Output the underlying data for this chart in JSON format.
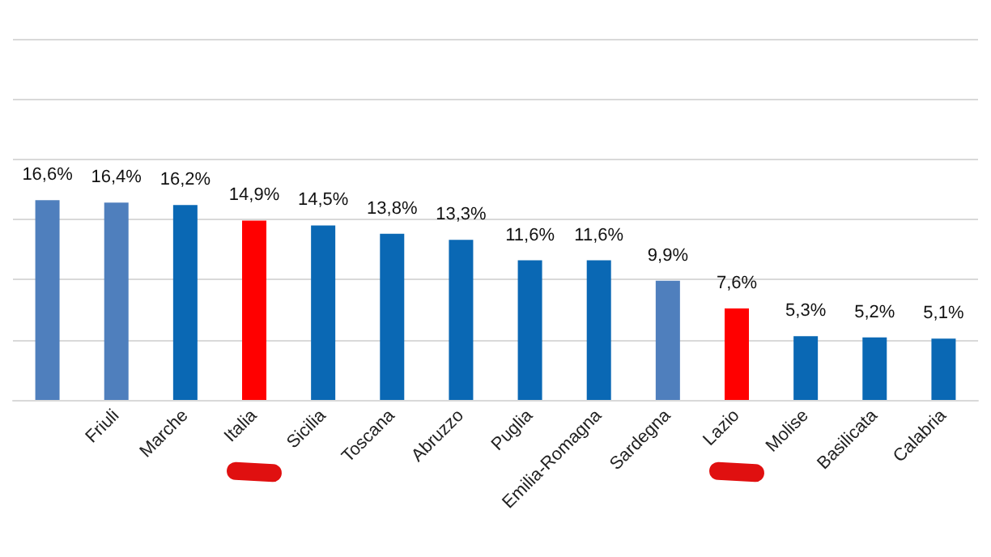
{
  "chart_data": {
    "type": "bar",
    "categories": [
      null,
      "Friuli",
      "Marche",
      "Italia",
      "Sicilia",
      "Toscana",
      "Abruzzo",
      "Puglia",
      "Emilia-Romagna",
      "Sardegna",
      "Lazio",
      "Molise",
      "Basilicata",
      "Calabria"
    ],
    "values": [
      16.6,
      16.4,
      16.2,
      14.9,
      14.5,
      13.8,
      13.3,
      11.6,
      11.6,
      9.9,
      7.6,
      5.3,
      5.2,
      5.1
    ],
    "colors": [
      "#4f7fbd",
      "#4f7fbd",
      "#0a68b4",
      "#ff0000",
      "#0a68b4",
      "#0a68b4",
      "#0a68b4",
      "#0a68b4",
      "#0a68b4",
      "#4f7fbd",
      "#ff0000",
      "#0a68b4",
      "#0a68b4",
      "#0a68b4"
    ],
    "value_labels": [
      "16,6%",
      "16,4%",
      "16,2%",
      "14,9%",
      "14,5%",
      "13,8%",
      "13,3%",
      "11,6%",
      "11,6%",
      "9,9%",
      "7,6%",
      "5,3%",
      "5,2%",
      "5,1%"
    ],
    "ylim": [
      0,
      30
    ],
    "yticks": [
      {
        "value": 0,
        "label": null
      },
      {
        "value": 5,
        "label": null
      },
      {
        "value": 10,
        "label": null
      },
      {
        "value": 15,
        "label": null
      },
      {
        "value": 20,
        "label": null
      },
      {
        "value": 25,
        "label": null
      },
      {
        "value": 30,
        "label": null
      }
    ],
    "grid": "y",
    "tick_labels": "x"
  }
}
